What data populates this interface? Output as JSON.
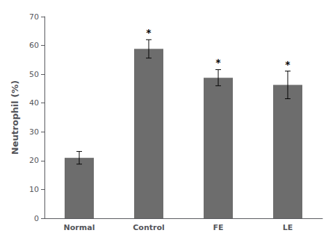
{
  "chart_data": {
    "type": "bar",
    "categories": [
      "Normal",
      "Control",
      "FE",
      "LE"
    ],
    "values": [
      21.0,
      58.8,
      48.8,
      46.3
    ],
    "errors": [
      2.2,
      3.2,
      2.8,
      4.8
    ],
    "color": "#6d6d6d",
    "ylabel": "Neutrophil (%)",
    "ylim": [
      0,
      70
    ],
    "yticks": [
      0,
      10,
      20,
      30,
      40,
      50,
      60,
      70
    ],
    "grid": false,
    "annotations": [
      {
        "category": "Control",
        "text": "*"
      },
      {
        "category": "FE",
        "text": "*"
      },
      {
        "category": "LE",
        "text": "*"
      }
    ]
  }
}
